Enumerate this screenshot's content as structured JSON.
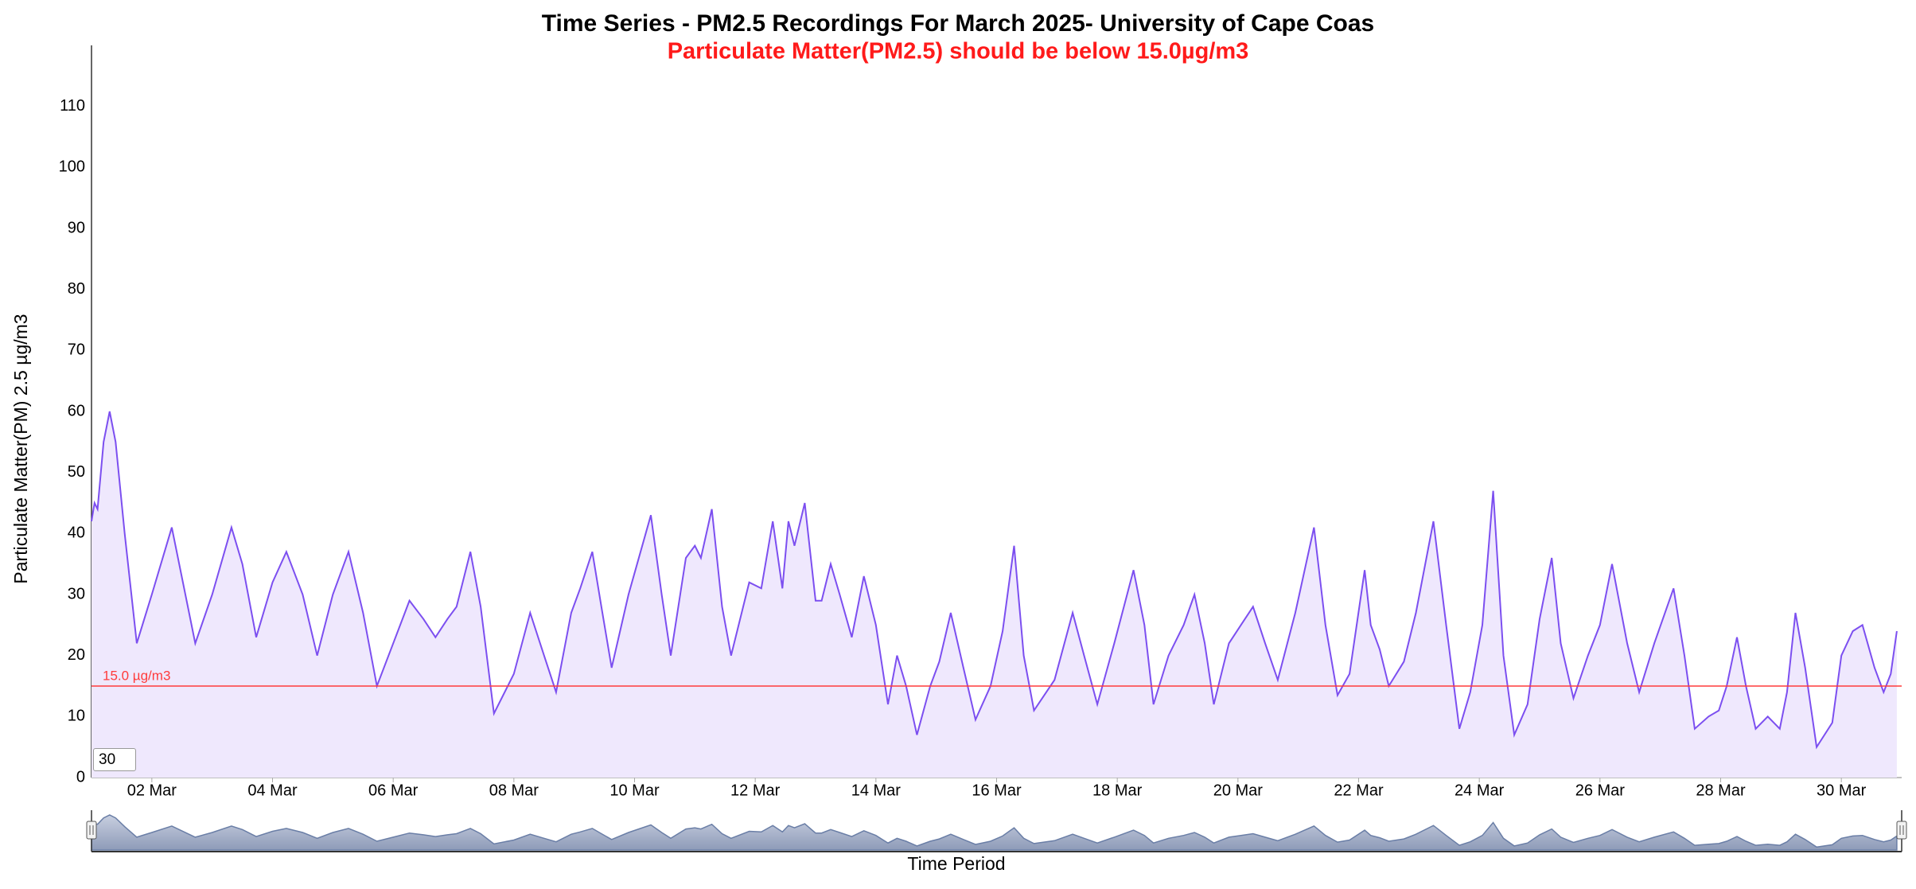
{
  "chart_data": {
    "type": "area",
    "title": "Time Series - PM2.5 Recordings For March 2025- University of Cape Coas",
    "subtitle": "Particulate Matter(PM2.5) should be below 15.0µg/m3",
    "y_label": "Particulate Matter(PM) 2.5 µg/m3",
    "x_label": "Time Period",
    "range_box": 30,
    "threshold": {
      "value": 15,
      "label": "15.0 µg/m3",
      "color": "#ff3b3b"
    },
    "grid": false,
    "xlim": [
      1,
      31
    ],
    "ylim": [
      0,
      120
    ],
    "yticks": [
      0,
      10,
      20,
      30,
      40,
      50,
      60,
      70,
      80,
      90,
      100,
      110
    ],
    "xticks": [
      {
        "value": 2,
        "label": "02 Mar"
      },
      {
        "value": 4,
        "label": "04 Mar"
      },
      {
        "value": 6,
        "label": "06 Mar"
      },
      {
        "value": 8,
        "label": "08 Mar"
      },
      {
        "value": 10,
        "label": "10 Mar"
      },
      {
        "value": 12,
        "label": "12 Mar"
      },
      {
        "value": 14,
        "label": "14 Mar"
      },
      {
        "value": 16,
        "label": "16 Mar"
      },
      {
        "value": 18,
        "label": "18 Mar"
      },
      {
        "value": 20,
        "label": "20 Mar"
      },
      {
        "value": 22,
        "label": "22 Mar"
      },
      {
        "value": 24,
        "label": "24 Mar"
      },
      {
        "value": 26,
        "label": "26 Mar"
      },
      {
        "value": 28,
        "label": "28 Mar"
      },
      {
        "value": 30,
        "label": "30 Mar"
      }
    ],
    "series": [
      {
        "color": "#7c4ff0",
        "fill": "#efe8fd",
        "x": [
          1.0,
          1.05,
          1.1,
          1.2,
          1.3,
          1.4,
          1.55,
          1.75,
          2.0,
          2.33,
          2.72,
          3.0,
          3.32,
          3.5,
          3.73,
          4.0,
          4.23,
          4.5,
          4.74,
          5.0,
          5.26,
          5.5,
          5.73,
          6.0,
          6.27,
          6.5,
          6.7,
          6.9,
          7.05,
          7.28,
          7.45,
          7.67,
          8.0,
          8.27,
          8.5,
          8.7,
          8.95,
          9.1,
          9.3,
          9.45,
          9.62,
          9.9,
          10.27,
          10.45,
          10.6,
          10.85,
          11.0,
          11.1,
          11.28,
          11.45,
          11.6,
          11.9,
          12.1,
          12.29,
          12.45,
          12.55,
          12.65,
          12.82,
          13.0,
          13.1,
          13.25,
          13.4,
          13.6,
          13.8,
          14.0,
          14.2,
          14.35,
          14.5,
          14.68,
          14.9,
          15.05,
          15.24,
          15.45,
          15.65,
          15.9,
          16.1,
          16.29,
          16.45,
          16.62,
          16.96,
          17.26,
          17.45,
          17.67,
          17.95,
          18.27,
          18.45,
          18.6,
          18.85,
          19.1,
          19.28,
          19.45,
          19.6,
          19.85,
          20.05,
          20.25,
          20.45,
          20.66,
          20.95,
          21.26,
          21.45,
          21.65,
          21.85,
          22.1,
          22.2,
          22.35,
          22.5,
          22.75,
          22.95,
          23.24,
          23.45,
          23.67,
          23.85,
          24.05,
          24.23,
          24.4,
          24.58,
          24.8,
          25.0,
          25.2,
          25.35,
          25.56,
          25.8,
          26.0,
          26.2,
          26.45,
          26.65,
          26.9,
          27.22,
          27.4,
          27.57,
          27.8,
          27.97,
          28.1,
          28.27,
          28.42,
          28.58,
          28.78,
          28.98,
          29.1,
          29.24,
          29.4,
          29.59,
          29.85,
          30.0,
          30.19,
          30.35,
          30.55,
          30.7,
          30.82,
          30.92
        ],
        "values": [
          42,
          45,
          44,
          55,
          60,
          55,
          40,
          22,
          30,
          41,
          22,
          30,
          41,
          35,
          23,
          32,
          37,
          30,
          20,
          30,
          37,
          27,
          15,
          22,
          29,
          26,
          23,
          26,
          28,
          37,
          28,
          10.5,
          17,
          27,
          20,
          14,
          27,
          31,
          37,
          28,
          18,
          30,
          43,
          30,
          20,
          36,
          38,
          36,
          44,
          28,
          20,
          32,
          31,
          42,
          31,
          42,
          38,
          45,
          29,
          29,
          35,
          30,
          23,
          33,
          25,
          12,
          20,
          15,
          7,
          15,
          19,
          27,
          18,
          9.5,
          15,
          24,
          38,
          20,
          11,
          16,
          27,
          20,
          12,
          22,
          34,
          25,
          12,
          20,
          25,
          30,
          22,
          12,
          22,
          25,
          28,
          22,
          16,
          27,
          41,
          25,
          13.5,
          17,
          34,
          25,
          21,
          15,
          19,
          27,
          42,
          25,
          8,
          14,
          25,
          47,
          20,
          7,
          12,
          26,
          36,
          22,
          13,
          20,
          25,
          35,
          22,
          14,
          22,
          31,
          20,
          8,
          10,
          11,
          15,
          23,
          15,
          8,
          10,
          8,
          14,
          27,
          18,
          5,
          9,
          20,
          24,
          25,
          18,
          14,
          17,
          24
        ]
      }
    ]
  }
}
